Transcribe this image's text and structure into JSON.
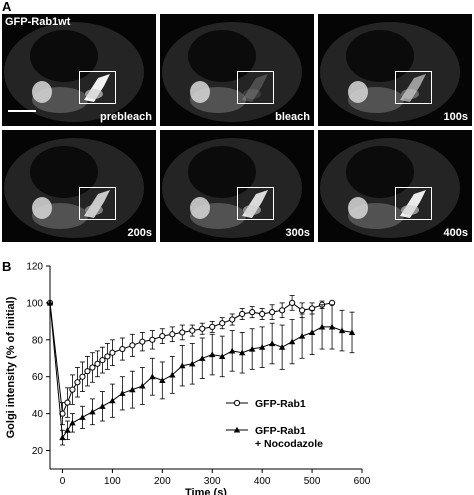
{
  "panel_a": {
    "letter": "A",
    "title": "GFP-Rab1wt",
    "frames": [
      {
        "label": "prebleach",
        "golgi": 1.0
      },
      {
        "label": "bleach",
        "golgi": 0.05
      },
      {
        "label": "100s",
        "golgi": 0.5
      },
      {
        "label": "200s",
        "golgi": 0.75
      },
      {
        "label": "300s",
        "golgi": 0.85
      },
      {
        "label": "400s",
        "golgi": 0.95
      }
    ]
  },
  "panel_b": {
    "letter": "B"
  },
  "chart_data": {
    "type": "line",
    "xlabel": "Time (s)",
    "ylabel": "Golgi intensity (% of initial)",
    "xlim": [
      -25,
      600
    ],
    "ylim": [
      10,
      120
    ],
    "xticks": [
      0,
      100,
      200,
      300,
      400,
      500,
      600
    ],
    "yticks": [
      20,
      40,
      60,
      80,
      100,
      120
    ],
    "grid": false,
    "legend_position": "bottom-right",
    "series": [
      {
        "name": "GFP-Rab1",
        "marker": "open-circle",
        "points": [
          [
            -25,
            100,
            0
          ],
          [
            0,
            40,
            6
          ],
          [
            10,
            46,
            8
          ],
          [
            20,
            53,
            8
          ],
          [
            30,
            57,
            8
          ],
          [
            40,
            60,
            8
          ],
          [
            50,
            63,
            8
          ],
          [
            60,
            65,
            8
          ],
          [
            70,
            67,
            7
          ],
          [
            80,
            69,
            7
          ],
          [
            90,
            71,
            7
          ],
          [
            100,
            73,
            7
          ],
          [
            120,
            75,
            6
          ],
          [
            140,
            77,
            6
          ],
          [
            160,
            79,
            5
          ],
          [
            180,
            80,
            5
          ],
          [
            200,
            82,
            4
          ],
          [
            220,
            83,
            4
          ],
          [
            240,
            84,
            4
          ],
          [
            260,
            85,
            3
          ],
          [
            280,
            86,
            3
          ],
          [
            300,
            87,
            3
          ],
          [
            320,
            89,
            3
          ],
          [
            340,
            91,
            3
          ],
          [
            360,
            94,
            3
          ],
          [
            380,
            95,
            3
          ],
          [
            400,
            94,
            3
          ],
          [
            420,
            95,
            4
          ],
          [
            440,
            96,
            4
          ],
          [
            460,
            100,
            4
          ],
          [
            480,
            96,
            4
          ],
          [
            500,
            97,
            3
          ],
          [
            520,
            99,
            2
          ],
          [
            540,
            100,
            0
          ]
        ]
      },
      {
        "name": "GFP-Rab1\n+ Nocodazole",
        "marker": "filled-triangle",
        "points": [
          [
            -25,
            100,
            0
          ],
          [
            0,
            27,
            4
          ],
          [
            10,
            31,
            5
          ],
          [
            20,
            35,
            5
          ],
          [
            40,
            38,
            6
          ],
          [
            60,
            41,
            7
          ],
          [
            80,
            44,
            8
          ],
          [
            100,
            47,
            9
          ],
          [
            120,
            51,
            9
          ],
          [
            140,
            53,
            10
          ],
          [
            160,
            55,
            10
          ],
          [
            180,
            60,
            10
          ],
          [
            200,
            58,
            10
          ],
          [
            220,
            61,
            10
          ],
          [
            240,
            66,
            11
          ],
          [
            260,
            67,
            11
          ],
          [
            280,
            70,
            11
          ],
          [
            300,
            72,
            11
          ],
          [
            320,
            71,
            11
          ],
          [
            340,
            74,
            11
          ],
          [
            360,
            73,
            11
          ],
          [
            380,
            75,
            11
          ],
          [
            400,
            76,
            11
          ],
          [
            420,
            78,
            11
          ],
          [
            440,
            76,
            12
          ],
          [
            460,
            79,
            12
          ],
          [
            480,
            82,
            12
          ],
          [
            500,
            84,
            12
          ],
          [
            520,
            87,
            12
          ],
          [
            540,
            87,
            12
          ],
          [
            560,
            85,
            11
          ],
          [
            580,
            84,
            11
          ]
        ]
      }
    ]
  }
}
